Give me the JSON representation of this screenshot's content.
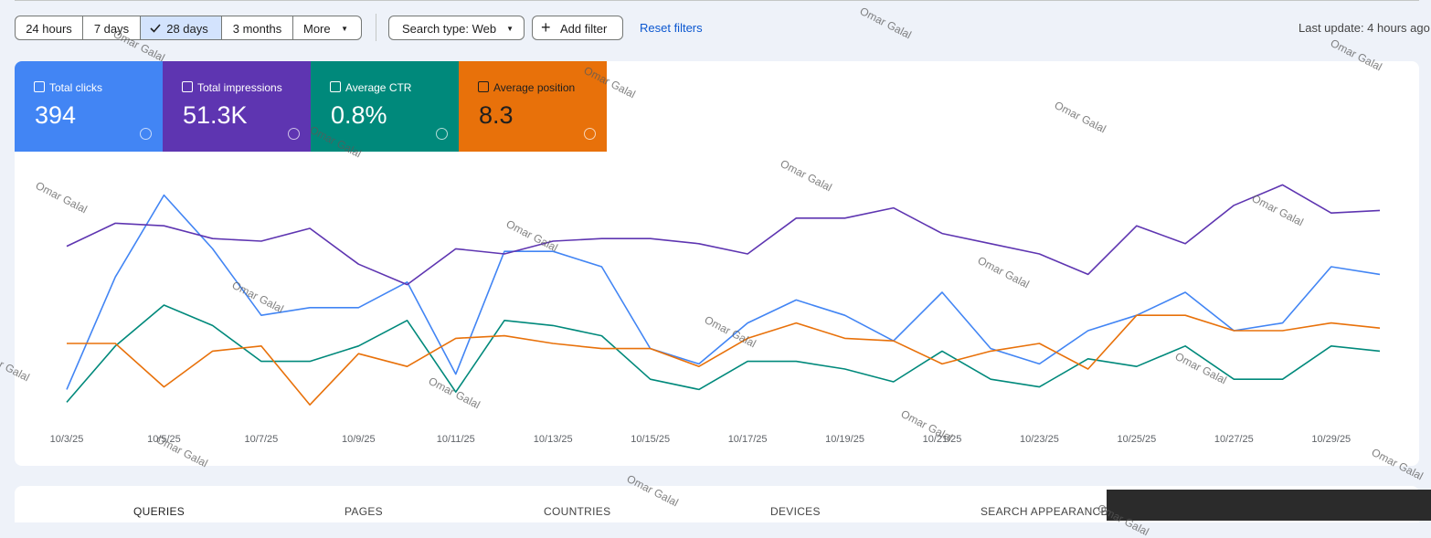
{
  "toolbar": {
    "date_ranges": [
      "24 hours",
      "7 days",
      "28 days",
      "3 months",
      "More"
    ],
    "search_type": "Search type: Web",
    "add_filter": "Add filter",
    "reset_filters": "Reset filters",
    "last_update": "Last update: 4 hours ago"
  },
  "metrics": [
    {
      "value": "394"
    },
    {
      "value": "51.3K"
    },
    {
      "value": "0.8%"
    },
    {
      "value": "8.3"
    }
  ],
  "chart_data": {
    "type": "line",
    "categories": [
      "10/3/25",
      null,
      "10/5/25",
      null,
      "10/7/25",
      null,
      "10/9/25",
      null,
      "10/11/25",
      null,
      "10/13/25",
      null,
      "10/15/25",
      null,
      "10/17/25",
      null,
      "10/19/25",
      null,
      "10/21/25",
      null,
      "10/23/25",
      null,
      "10/25/25",
      null,
      "10/27/25",
      null,
      "10/29/25",
      null
    ],
    "series": [
      {
        "name": "Total clicks",
        "color": "#4285f4",
        "values": [
          12,
          56,
          88,
          67,
          41,
          44,
          44,
          54,
          18,
          66,
          66,
          60,
          28,
          22,
          38,
          47,
          41,
          31,
          50,
          28,
          22,
          35,
          41,
          50,
          35,
          38,
          60,
          57
        ]
      },
      {
        "name": "Total impressions",
        "color": "#5e35b1",
        "values": [
          68,
          77,
          76,
          71,
          70,
          75,
          61,
          53,
          67,
          65,
          70,
          71,
          71,
          69,
          65,
          79,
          79,
          83,
          73,
          69,
          65,
          57,
          76,
          69,
          84,
          92,
          81,
          82
        ]
      },
      {
        "name": "Average CTR",
        "color": "#00897b",
        "values": [
          7,
          29,
          45,
          37,
          23,
          23,
          29,
          39,
          11,
          39,
          37,
          33,
          16,
          12,
          23,
          23,
          20,
          15,
          27,
          16,
          13,
          24,
          21,
          29,
          16,
          16,
          29,
          27
        ]
      },
      {
        "name": "Average position",
        "color": "#e8710a",
        "values": [
          30,
          30,
          13,
          27,
          29,
          6,
          26,
          21,
          32,
          33,
          30,
          28,
          28,
          21,
          32,
          38,
          32,
          31,
          22,
          27,
          30,
          20,
          41,
          41,
          35,
          35,
          38,
          36
        ]
      }
    ],
    "ylim": [
      0,
      100
    ]
  },
  "tabs": [
    "QUERIES",
    "PAGES",
    "COUNTRIES",
    "DEVICES",
    "SEARCH APPEARANCE"
  ],
  "watermark": "Omar Galal"
}
